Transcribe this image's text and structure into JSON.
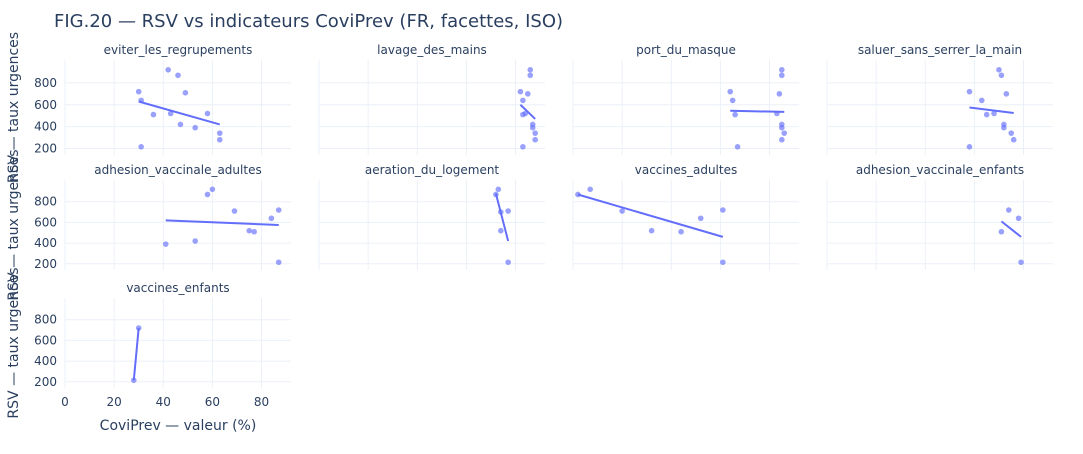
{
  "chart_data": {
    "type": "scatter",
    "title": "FIG.20 — RSV vs indicateurs CoviPrev (FR, facettes, ISO)",
    "xlabel": "CoviPrev — valeur (%)",
    "ylabel": "RSV — taux urgences",
    "xlim": [
      0,
      92
    ],
    "ylim": [
      140,
      1010
    ],
    "xticks": [
      0,
      20,
      40,
      60,
      80
    ],
    "yticks": [
      200,
      400,
      600,
      800
    ],
    "grid": true,
    "marker_color": "#636efa",
    "line_color": "#636efa",
    "facets": [
      {
        "label": "eviter_les_regrupements",
        "points": [
          [
            30,
            720
          ],
          [
            31,
            640
          ],
          [
            36,
            510
          ],
          [
            42,
            920
          ],
          [
            43,
            520
          ],
          [
            46,
            870
          ],
          [
            47,
            420
          ],
          [
            49,
            710
          ],
          [
            53,
            390
          ],
          [
            58,
            520
          ],
          [
            63,
            340
          ],
          [
            63,
            280
          ],
          [
            31,
            215
          ]
        ],
        "trend": [
          [
            30,
            630
          ],
          [
            63,
            420
          ]
        ]
      },
      {
        "label": "lavage_des_mains",
        "points": [
          [
            82,
            720
          ],
          [
            83,
            640
          ],
          [
            83,
            510
          ],
          [
            84,
            520
          ],
          [
            85,
            700
          ],
          [
            86,
            920
          ],
          [
            86,
            870
          ],
          [
            87,
            420
          ],
          [
            87,
            390
          ],
          [
            88,
            340
          ],
          [
            88,
            280
          ],
          [
            83,
            215
          ]
        ],
        "trend": [
          [
            82,
            600
          ],
          [
            88,
            470
          ]
        ]
      },
      {
        "label": "port_du_masque",
        "points": [
          [
            64,
            720
          ],
          [
            65,
            640
          ],
          [
            66,
            510
          ],
          [
            83,
            520
          ],
          [
            84,
            700
          ],
          [
            85,
            920
          ],
          [
            85,
            870
          ],
          [
            85,
            420
          ],
          [
            85,
            390
          ],
          [
            86,
            340
          ],
          [
            85,
            280
          ],
          [
            67,
            215
          ]
        ],
        "trend": [
          [
            64,
            545
          ],
          [
            86,
            535
          ]
        ]
      },
      {
        "label": "saluer_sans_serrer_la_main",
        "points": [
          [
            58,
            720
          ],
          [
            63,
            640
          ],
          [
            65,
            510
          ],
          [
            68,
            520
          ],
          [
            70,
            920
          ],
          [
            71,
            870
          ],
          [
            72,
            420
          ],
          [
            72,
            390
          ],
          [
            73,
            700
          ],
          [
            75,
            340
          ],
          [
            76,
            280
          ],
          [
            58,
            215
          ]
        ],
        "trend": [
          [
            58,
            575
          ],
          [
            76,
            525
          ]
        ]
      },
      {
        "label": "adhesion_vaccinale_adultes",
        "points": [
          [
            41,
            390
          ],
          [
            53,
            420
          ],
          [
            58,
            870
          ],
          [
            60,
            920
          ],
          [
            69,
            710
          ],
          [
            75,
            520
          ],
          [
            77,
            510
          ],
          [
            84,
            640
          ],
          [
            87,
            720
          ],
          [
            87,
            215
          ]
        ],
        "trend": [
          [
            41,
            620
          ],
          [
            87,
            575
          ]
        ]
      },
      {
        "label": "aeration_du_logement",
        "points": [
          [
            73,
            920
          ],
          [
            72,
            870
          ],
          [
            74,
            700
          ],
          [
            74,
            520
          ],
          [
            77,
            710
          ],
          [
            77,
            215
          ]
        ],
        "trend": [
          [
            72,
            880
          ],
          [
            77,
            420
          ]
        ]
      },
      {
        "label": "vaccines_adultes",
        "points": [
          [
            2,
            870
          ],
          [
            7,
            920
          ],
          [
            20,
            710
          ],
          [
            32,
            520
          ],
          [
            44,
            510
          ],
          [
            52,
            640
          ],
          [
            61,
            720
          ],
          [
            61,
            215
          ]
        ],
        "trend": [
          [
            2,
            870
          ],
          [
            61,
            460
          ]
        ]
      },
      {
        "label": "adhesion_vaccinale_enfants",
        "points": [
          [
            71,
            510
          ],
          [
            74,
            720
          ],
          [
            78,
            640
          ],
          [
            79,
            215
          ]
        ],
        "trend": [
          [
            71,
            610
          ],
          [
            79,
            460
          ]
        ]
      },
      {
        "label": "vaccines_enfants",
        "points": [
          [
            28,
            215
          ],
          [
            30,
            720
          ]
        ],
        "trend": [
          [
            28,
            215
          ],
          [
            30,
            720
          ]
        ]
      }
    ]
  }
}
